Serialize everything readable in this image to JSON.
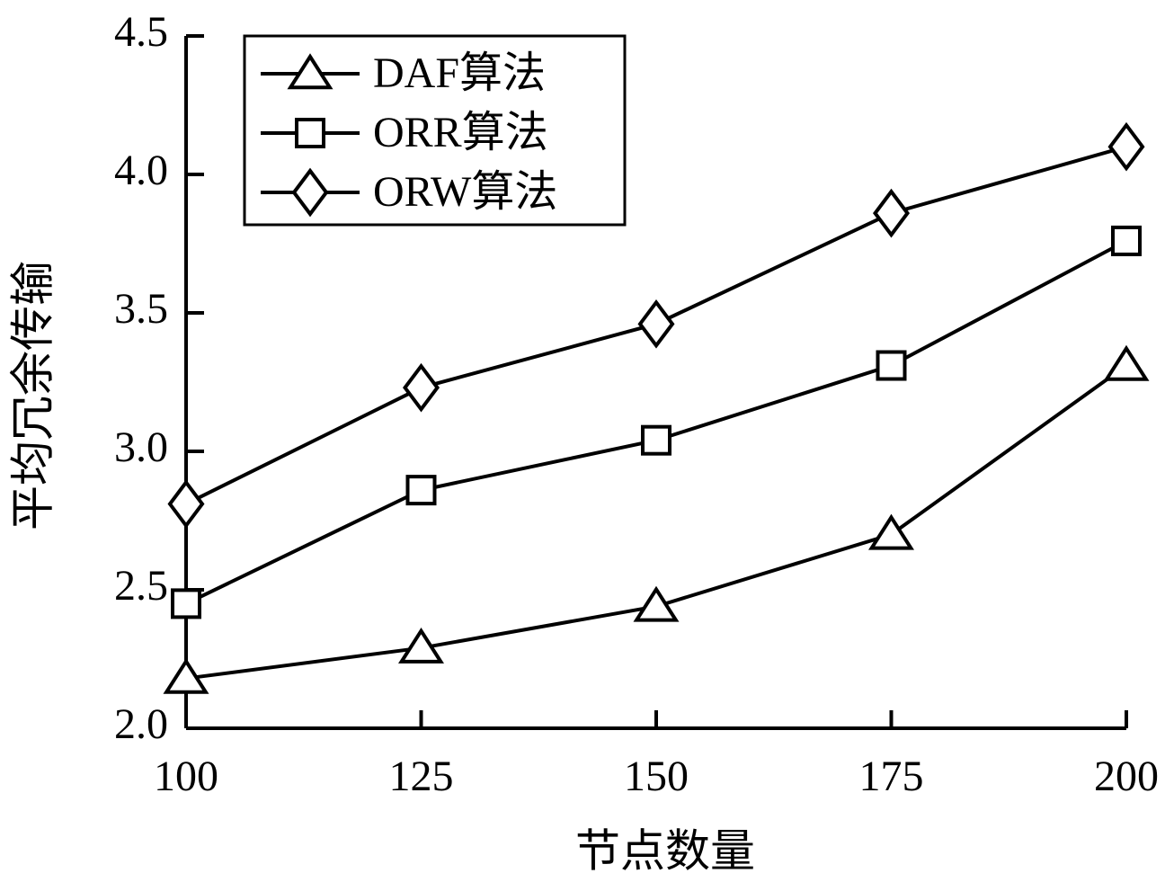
{
  "chart_data": {
    "type": "line",
    "x_label": "节点数量",
    "y_label": "平均冗余传输",
    "x": [
      100,
      125,
      150,
      175,
      200
    ],
    "series": [
      {
        "name": "DAF算法",
        "color": "#000000",
        "marker": "triangle",
        "values": [
          2.18,
          2.29,
          2.44,
          2.7,
          3.31
        ]
      },
      {
        "name": "ORR算法",
        "color": "#000000",
        "marker": "square",
        "values": [
          2.45,
          2.86,
          3.04,
          3.31,
          3.76
        ]
      },
      {
        "name": "ORW算法",
        "color": "#000000",
        "marker": "diamond",
        "values": [
          2.81,
          3.23,
          3.46,
          3.86,
          4.1
        ]
      }
    ],
    "xlim": [
      100,
      200
    ],
    "xticks": [
      100,
      125,
      150,
      175,
      200
    ],
    "ylim": [
      2,
      4.5
    ],
    "yticks": [
      {
        "value": 2,
        "label": "2.0"
      },
      {
        "value": 2.5,
        "label": "2.5"
      },
      {
        "value": 3,
        "label": "3.0"
      },
      {
        "value": 3.5,
        "label": "3.5"
      },
      {
        "value": 4,
        "label": "4.0"
      },
      {
        "value": 4.5,
        "label": "4.5"
      }
    ],
    "legend": "upper left",
    "grid": false
  }
}
